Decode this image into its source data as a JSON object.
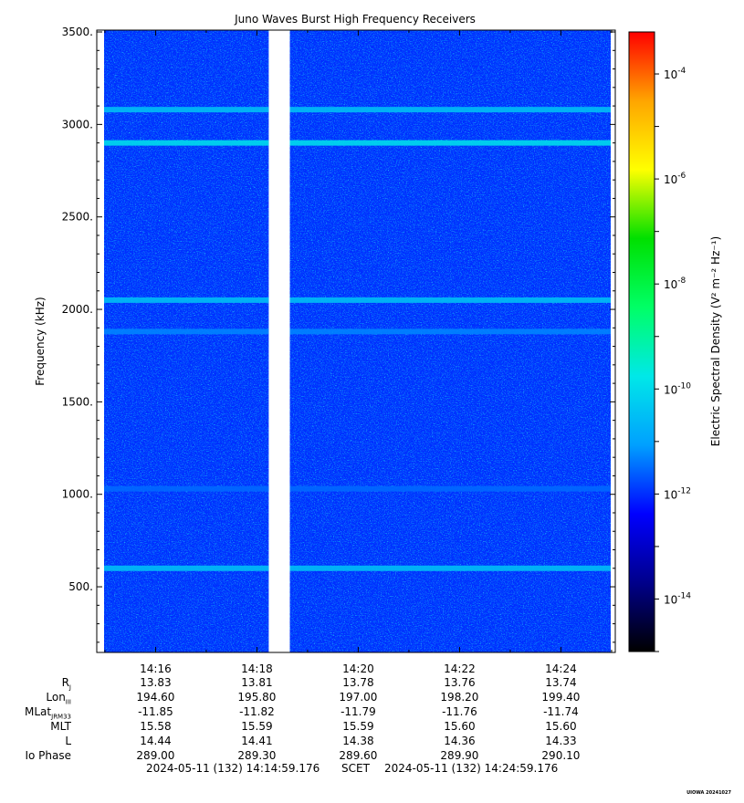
{
  "chart_data": {
    "type": "heatmap",
    "title": "Juno Waves Burst High Frequency Receivers",
    "ylabel": "Frequency (kHz)",
    "ylim": [
      145,
      3510
    ],
    "yticks": [
      "500.",
      "1000.",
      "1500.",
      "2000.",
      "2500.",
      "3000.",
      "3500."
    ],
    "ytick_values": [
      500,
      1000,
      1500,
      2000,
      2500,
      3000,
      3500
    ],
    "x_start": "14:14:59",
    "x_end": "14:24:59",
    "xticks": [
      "14:16",
      "14:18",
      "14:20",
      "14:22",
      "14:24"
    ],
    "data_gap": [
      "14:18:14",
      "14:18:39"
    ],
    "background_level": "1e-12",
    "bands": [
      {
        "freq_khz": 3080,
        "level": "3e-11"
      },
      {
        "freq_khz": 2900,
        "level": "1e-10"
      },
      {
        "freq_khz": 2050,
        "level": "3e-11"
      },
      {
        "freq_khz": 1880,
        "level": "5e-12"
      },
      {
        "freq_khz": 1030,
        "level": "3e-12"
      },
      {
        "freq_khz": 600,
        "level": "3e-11"
      }
    ],
    "colorbar": {
      "label": "Electric Spectral Density (V² m⁻² Hz⁻¹)",
      "ticks": [
        "10-4",
        "10-6",
        "10-8",
        "10-10",
        "10-12",
        "10-14"
      ],
      "tick_exponents": [
        -4,
        -6,
        -8,
        -10,
        -12,
        -14
      ],
      "range_exponent": [
        -15,
        -3.2
      ],
      "colors": [
        "#000000",
        "#00008b",
        "#0000ff",
        "#00a0ff",
        "#00e8e8",
        "#00ff66",
        "#00e000",
        "#ffff00",
        "#ffa500",
        "#ff0000"
      ]
    }
  },
  "ephemeris": {
    "rows": [
      {
        "label": "R",
        "sub": "J",
        "values": [
          "13.83",
          "13.81",
          "13.78",
          "13.76",
          "13.74"
        ]
      },
      {
        "label": "Lon",
        "sub": "III",
        "values": [
          "194.60",
          "195.80",
          "197.00",
          "198.20",
          "199.40"
        ]
      },
      {
        "label": "MLat",
        "sub": "JRM33",
        "values": [
          "-11.85",
          "-11.82",
          "-11.79",
          "-11.76",
          "-11.74"
        ]
      },
      {
        "label": "MLT",
        "sub": "",
        "values": [
          "15.58",
          "15.59",
          "15.59",
          "15.60",
          "15.60"
        ]
      },
      {
        "label": "L",
        "sub": "",
        "values": [
          "14.44",
          "14.41",
          "14.38",
          "14.36",
          "14.33"
        ]
      },
      {
        "label": "Io Phase",
        "sub": "",
        "values": [
          "289.00",
          "289.30",
          "289.60",
          "289.90",
          "290.10"
        ]
      }
    ]
  },
  "time_range": {
    "start": "2024-05-11 (132) 14:14:59.176",
    "scet": "SCET",
    "end": "2024-05-11 (132) 14:24:59.176"
  },
  "stamp": "UIOWA 20241027"
}
